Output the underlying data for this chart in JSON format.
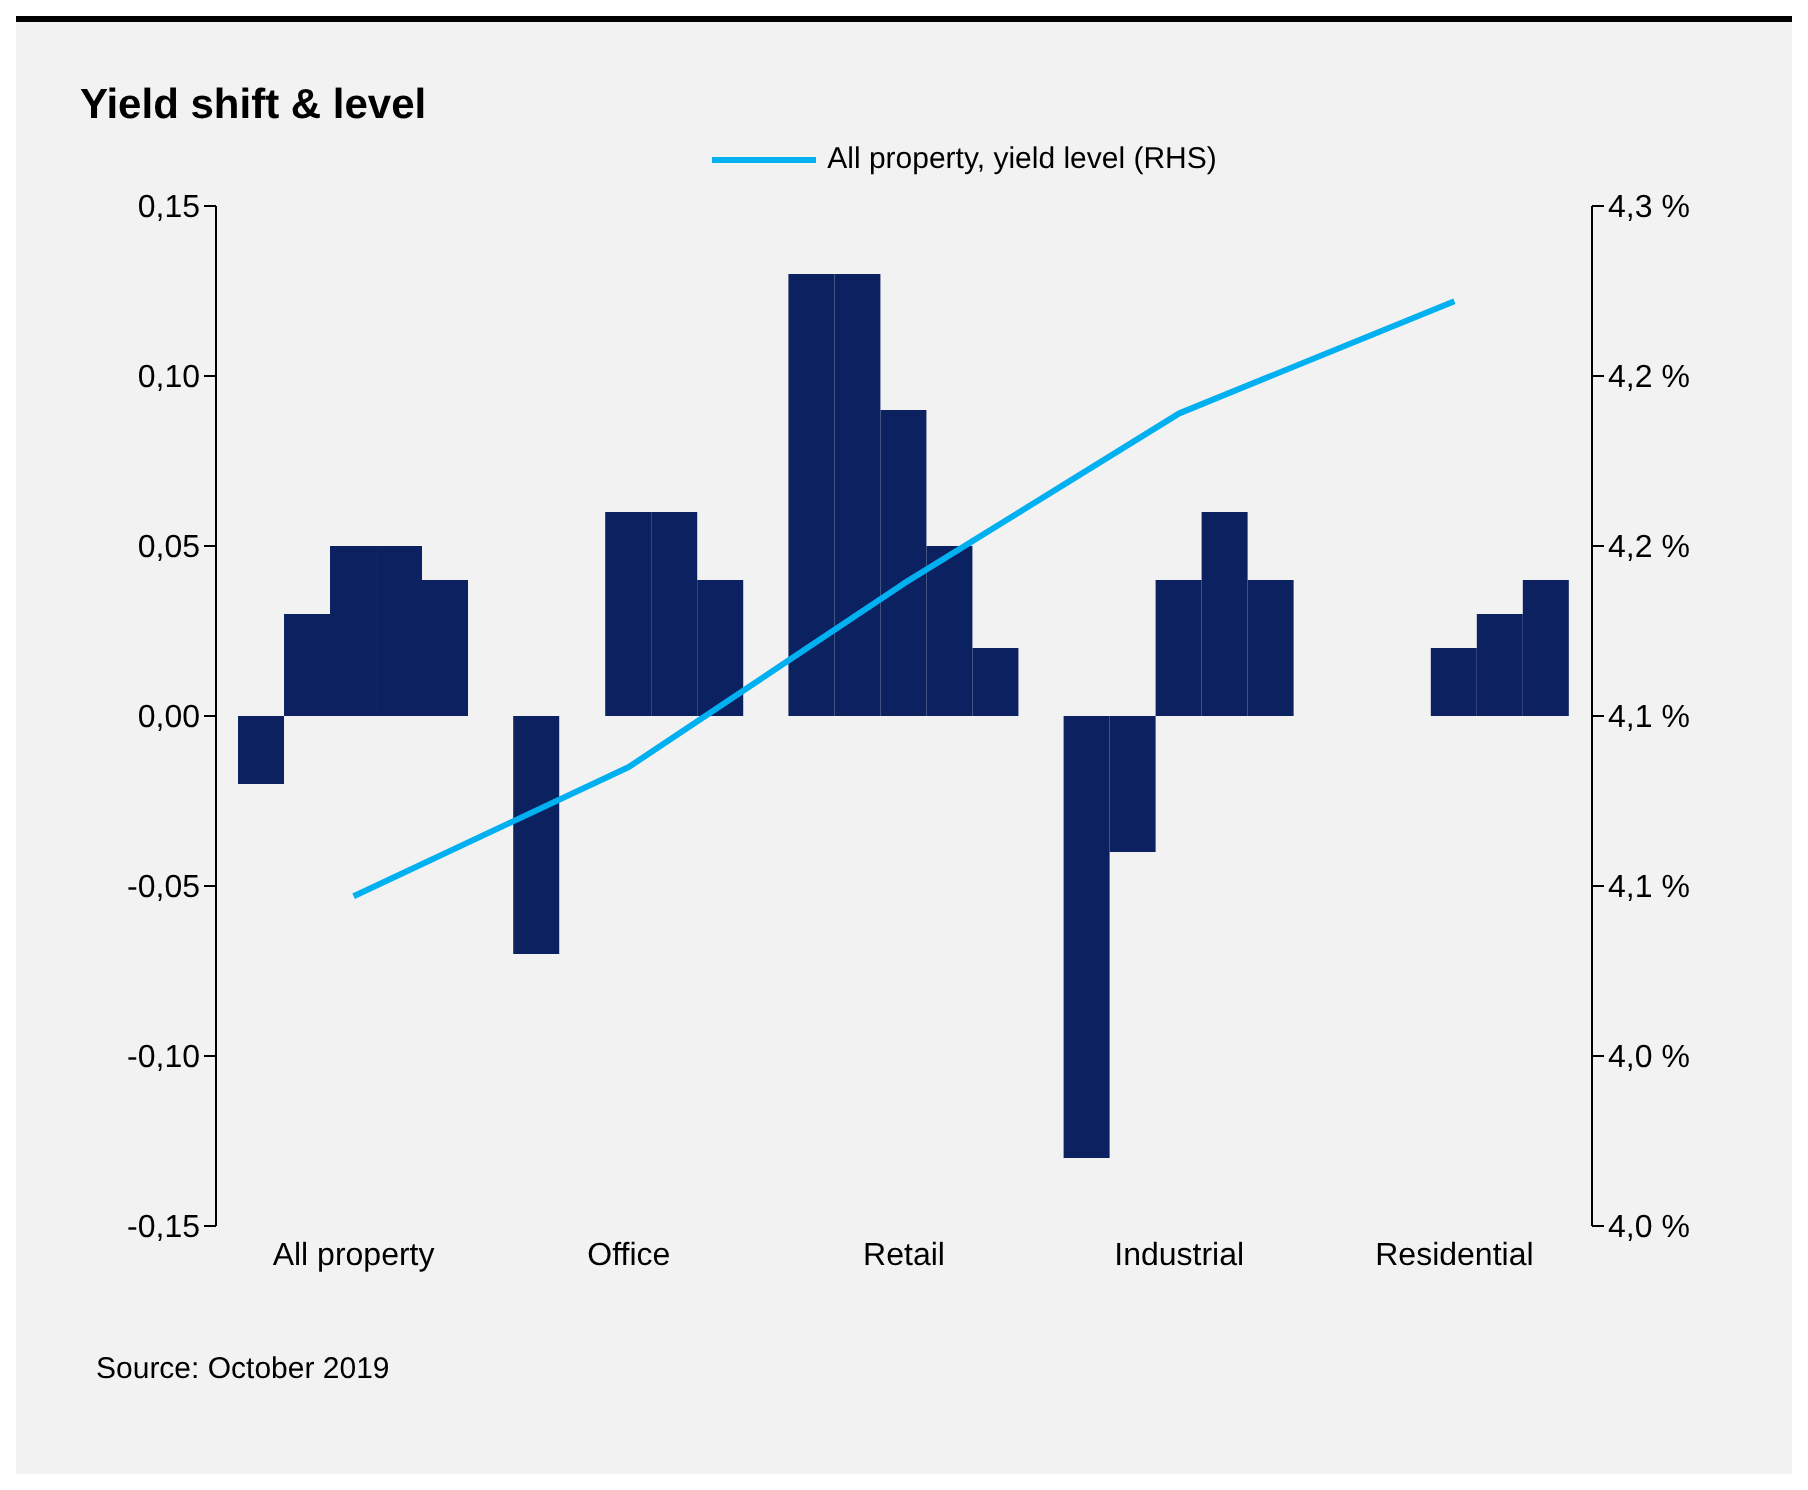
{
  "chart_data": {
    "type": "bar",
    "title": "Yield shift & level",
    "categories": [
      "All property",
      "Office",
      "Retail",
      "Industrial",
      "Residential"
    ],
    "series": [
      {
        "color": "#0c2160",
        "values": [
          -0.02,
          -0.07,
          0.13,
          -0.13,
          null
        ]
      },
      {
        "color": "#0c2160",
        "values": [
          0.03,
          null,
          0.13,
          -0.04,
          null
        ]
      },
      {
        "color": "#0c2160",
        "values": [
          0.05,
          0.06,
          0.09,
          0.04,
          0.02
        ]
      },
      {
        "color": "#0c2160",
        "values": [
          0.05,
          0.06,
          0.05,
          0.06,
          0.03
        ]
      },
      {
        "color": "#0c2160",
        "values": [
          0.04,
          0.04,
          0.02,
          0.04,
          0.04
        ]
      },
      {
        "type": "line",
        "axis": "y2",
        "name": "All property, yield level (RHS)",
        "color": "#00b0f0",
        "values": [
          4.097,
          4.135,
          4.189,
          4.239,
          4.272
        ]
      }
    ],
    "ylim": [
      -0.15,
      0.15
    ],
    "yticks": [
      {
        "value": -0.15,
        "label": "-0,15"
      },
      {
        "value": -0.1,
        "label": "-0,10"
      },
      {
        "value": -0.05,
        "label": "-0,05"
      },
      {
        "value": 0,
        "label": "0,00"
      },
      {
        "value": 0.05,
        "label": "0,05"
      },
      {
        "value": 0.1,
        "label": "0,10"
      },
      {
        "value": 0.15,
        "label": "0,15"
      }
    ],
    "y2lim": [
      4.0,
      4.3
    ],
    "y2ticks": [
      {
        "value": 4.0,
        "label": "4,0 %"
      },
      {
        "value": 4.05,
        "label": "4,0 %"
      },
      {
        "value": 4.1,
        "label": "4,1 %"
      },
      {
        "value": 4.15,
        "label": "4,1 %"
      },
      {
        "value": 4.2,
        "label": "4,2 %"
      },
      {
        "value": 4.25,
        "label": "4,2 %"
      },
      {
        "value": 4.3,
        "label": "4,3 %"
      }
    ],
    "grid": false,
    "legend": "top",
    "marker": "none",
    "line_style": "solid",
    "annotations": [
      "Source: October 2019"
    ]
  }
}
